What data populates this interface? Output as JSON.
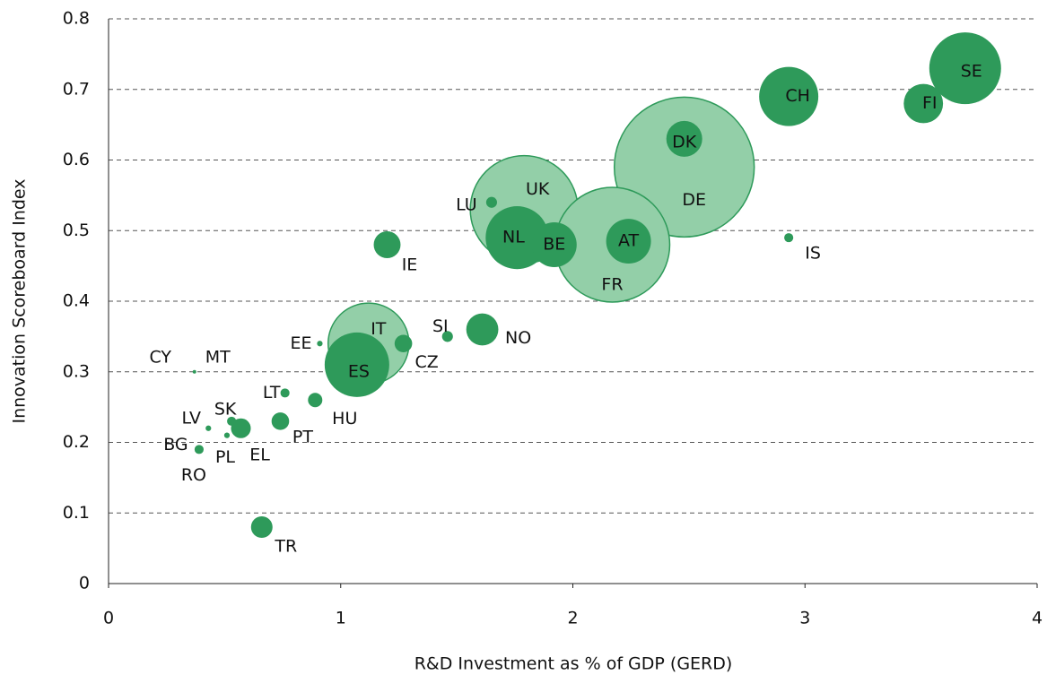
{
  "chart_data": {
    "type": "scatter",
    "x_label": "R&D Investment as % of GDP (GERD)",
    "y_label": "Innovation Scoreboard Index",
    "xlim": [
      0,
      4
    ],
    "xticks": [
      0,
      1,
      2,
      3,
      4
    ],
    "ylim": [
      0,
      0.8
    ],
    "yticks": [
      0,
      0.1,
      0.2,
      0.3,
      0.4,
      0.5,
      0.6,
      0.7,
      0.8
    ],
    "grid": true,
    "series": [
      {
        "color": "#93cfa8",
        "labels": [
          "DE",
          "UK",
          "FR",
          "IT"
        ],
        "x": [
          2.48,
          1.79,
          2.17,
          1.12
        ],
        "y": [
          0.59,
          0.53,
          0.48,
          0.34
        ],
        "size": [
          380,
          225,
          256,
          127
        ]
      },
      {
        "color": "#2e9a5a",
        "labels": [
          "SE",
          "FI",
          "CH",
          "DK",
          "IS",
          "LU",
          "NL",
          "BE",
          "AT",
          "IE",
          "NO",
          "SI",
          "CZ",
          "ES",
          "EE",
          "CY",
          "MT",
          "LT",
          "HU",
          "PT",
          "SK",
          "EL",
          "LV",
          "PL",
          "BG",
          "RO",
          "TR"
        ],
        "x": [
          3.69,
          3.51,
          2.93,
          2.48,
          2.93,
          1.65,
          1.76,
          1.92,
          2.24,
          1.2,
          1.61,
          1.46,
          1.27,
          1.07,
          0.91,
          0.37,
          0.37,
          0.76,
          0.89,
          0.74,
          0.53,
          0.57,
          0.43,
          0.51,
          0.39,
          0.39,
          0.66
        ],
        "y": [
          0.73,
          0.68,
          0.69,
          0.63,
          0.49,
          0.54,
          0.49,
          0.48,
          0.485,
          0.48,
          0.36,
          0.35,
          0.34,
          0.31,
          0.34,
          0.3,
          0.3,
          0.27,
          0.26,
          0.23,
          0.23,
          0.22,
          0.22,
          0.21,
          0.19,
          0.19,
          0.08
        ],
        "size": [
          100,
          30,
          68,
          25,
          1.6,
          2.3,
          77,
          39,
          39,
          14,
          20,
          2.3,
          6,
          81,
          0.6,
          0.25,
          0.15,
          1.6,
          4,
          6,
          1.6,
          7.6,
          0.6,
          0.6,
          1.6,
          0.6,
          9
        ]
      }
    ]
  }
}
